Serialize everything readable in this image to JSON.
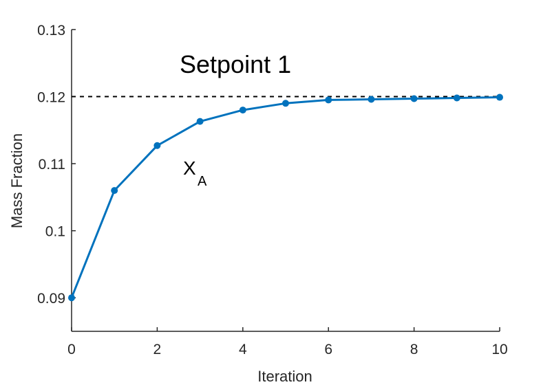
{
  "chart_data": {
    "type": "line",
    "xlabel": "Iteration",
    "ylabel": "Mass Fraction",
    "xlim": [
      0,
      10
    ],
    "ylim": [
      0.085,
      0.13
    ],
    "x_ticks": [
      0,
      2,
      4,
      6,
      8,
      10
    ],
    "x_tick_labels": [
      "0",
      "2",
      "4",
      "6",
      "8",
      "10"
    ],
    "y_ticks": [
      0.09,
      0.1,
      0.11,
      0.12,
      0.13
    ],
    "y_tick_labels": [
      "0.09",
      "0.1",
      "0.11",
      "0.12",
      "0.13"
    ],
    "grid": false,
    "series": [
      {
        "x": [
          0,
          1,
          2,
          3,
          4,
          5,
          6,
          7,
          8,
          9,
          10
        ],
        "values": [
          0.09,
          0.106,
          0.1127,
          0.1163,
          0.118,
          0.119,
          0.1195,
          0.1196,
          0.1197,
          0.1198,
          0.1199
        ],
        "color": "#0072BD",
        "marker": "circle"
      }
    ],
    "reference_line": {
      "y": 0.12,
      "style": "dashed",
      "color": "#000000"
    },
    "annotations": {
      "setpoint": "Setpoint 1",
      "series_label_main": "X",
      "series_label_sub": "A"
    }
  }
}
